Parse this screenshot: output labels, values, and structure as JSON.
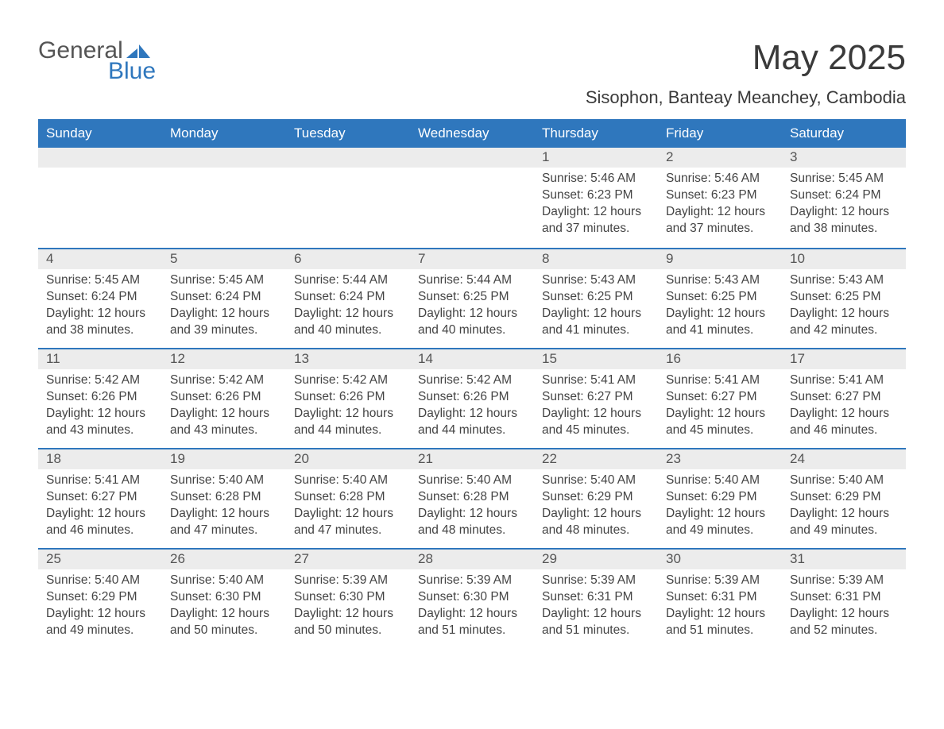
{
  "logo": {
    "text1": "General",
    "text2": "Blue",
    "mark_color": "#2f77bd",
    "text1_color": "#555555"
  },
  "title": "May 2025",
  "subtitle": "Sisophon, Banteay Meanchey, Cambodia",
  "weekday_header_bg": "#2f77bd",
  "weekday_header_fg": "#ffffff",
  "daynum_band_bg": "#ececec",
  "rule_color": "#2f77bd",
  "weekdays": [
    "Sunday",
    "Monday",
    "Tuesday",
    "Wednesday",
    "Thursday",
    "Friday",
    "Saturday"
  ],
  "weeks": [
    [
      {
        "empty": true
      },
      {
        "empty": true
      },
      {
        "empty": true
      },
      {
        "empty": true
      },
      {
        "n": "1",
        "sunrise": "5:46 AM",
        "sunset": "6:23 PM",
        "daylight": "12 hours and 37 minutes."
      },
      {
        "n": "2",
        "sunrise": "5:46 AM",
        "sunset": "6:23 PM",
        "daylight": "12 hours and 37 minutes."
      },
      {
        "n": "3",
        "sunrise": "5:45 AM",
        "sunset": "6:24 PM",
        "daylight": "12 hours and 38 minutes."
      }
    ],
    [
      {
        "n": "4",
        "sunrise": "5:45 AM",
        "sunset": "6:24 PM",
        "daylight": "12 hours and 38 minutes."
      },
      {
        "n": "5",
        "sunrise": "5:45 AM",
        "sunset": "6:24 PM",
        "daylight": "12 hours and 39 minutes."
      },
      {
        "n": "6",
        "sunrise": "5:44 AM",
        "sunset": "6:24 PM",
        "daylight": "12 hours and 40 minutes."
      },
      {
        "n": "7",
        "sunrise": "5:44 AM",
        "sunset": "6:25 PM",
        "daylight": "12 hours and 40 minutes."
      },
      {
        "n": "8",
        "sunrise": "5:43 AM",
        "sunset": "6:25 PM",
        "daylight": "12 hours and 41 minutes."
      },
      {
        "n": "9",
        "sunrise": "5:43 AM",
        "sunset": "6:25 PM",
        "daylight": "12 hours and 41 minutes."
      },
      {
        "n": "10",
        "sunrise": "5:43 AM",
        "sunset": "6:25 PM",
        "daylight": "12 hours and 42 minutes."
      }
    ],
    [
      {
        "n": "11",
        "sunrise": "5:42 AM",
        "sunset": "6:26 PM",
        "daylight": "12 hours and 43 minutes."
      },
      {
        "n": "12",
        "sunrise": "5:42 AM",
        "sunset": "6:26 PM",
        "daylight": "12 hours and 43 minutes."
      },
      {
        "n": "13",
        "sunrise": "5:42 AM",
        "sunset": "6:26 PM",
        "daylight": "12 hours and 44 minutes."
      },
      {
        "n": "14",
        "sunrise": "5:42 AM",
        "sunset": "6:26 PM",
        "daylight": "12 hours and 44 minutes."
      },
      {
        "n": "15",
        "sunrise": "5:41 AM",
        "sunset": "6:27 PM",
        "daylight": "12 hours and 45 minutes."
      },
      {
        "n": "16",
        "sunrise": "5:41 AM",
        "sunset": "6:27 PM",
        "daylight": "12 hours and 45 minutes."
      },
      {
        "n": "17",
        "sunrise": "5:41 AM",
        "sunset": "6:27 PM",
        "daylight": "12 hours and 46 minutes."
      }
    ],
    [
      {
        "n": "18",
        "sunrise": "5:41 AM",
        "sunset": "6:27 PM",
        "daylight": "12 hours and 46 minutes."
      },
      {
        "n": "19",
        "sunrise": "5:40 AM",
        "sunset": "6:28 PM",
        "daylight": "12 hours and 47 minutes."
      },
      {
        "n": "20",
        "sunrise": "5:40 AM",
        "sunset": "6:28 PM",
        "daylight": "12 hours and 47 minutes."
      },
      {
        "n": "21",
        "sunrise": "5:40 AM",
        "sunset": "6:28 PM",
        "daylight": "12 hours and 48 minutes."
      },
      {
        "n": "22",
        "sunrise": "5:40 AM",
        "sunset": "6:29 PM",
        "daylight": "12 hours and 48 minutes."
      },
      {
        "n": "23",
        "sunrise": "5:40 AM",
        "sunset": "6:29 PM",
        "daylight": "12 hours and 49 minutes."
      },
      {
        "n": "24",
        "sunrise": "5:40 AM",
        "sunset": "6:29 PM",
        "daylight": "12 hours and 49 minutes."
      }
    ],
    [
      {
        "n": "25",
        "sunrise": "5:40 AM",
        "sunset": "6:29 PM",
        "daylight": "12 hours and 49 minutes."
      },
      {
        "n": "26",
        "sunrise": "5:40 AM",
        "sunset": "6:30 PM",
        "daylight": "12 hours and 50 minutes."
      },
      {
        "n": "27",
        "sunrise": "5:39 AM",
        "sunset": "6:30 PM",
        "daylight": "12 hours and 50 minutes."
      },
      {
        "n": "28",
        "sunrise": "5:39 AM",
        "sunset": "6:30 PM",
        "daylight": "12 hours and 51 minutes."
      },
      {
        "n": "29",
        "sunrise": "5:39 AM",
        "sunset": "6:31 PM",
        "daylight": "12 hours and 51 minutes."
      },
      {
        "n": "30",
        "sunrise": "5:39 AM",
        "sunset": "6:31 PM",
        "daylight": "12 hours and 51 minutes."
      },
      {
        "n": "31",
        "sunrise": "5:39 AM",
        "sunset": "6:31 PM",
        "daylight": "12 hours and 52 minutes."
      }
    ]
  ],
  "labels": {
    "sunrise": "Sunrise: ",
    "sunset": "Sunset: ",
    "daylight": "Daylight: "
  }
}
